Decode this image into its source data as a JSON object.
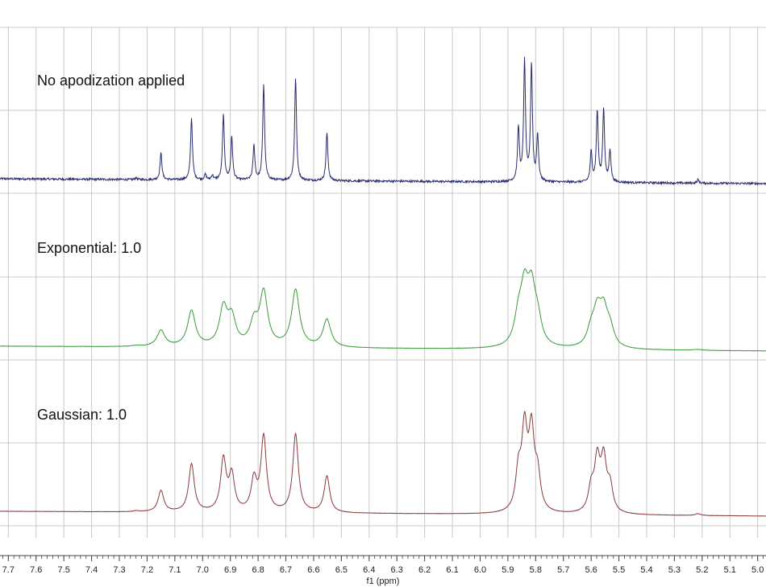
{
  "chart_data": {
    "type": "line",
    "xlabel": "f1 (ppm)",
    "xlim": [
      7.73,
      4.97
    ],
    "x_reversed": true,
    "x_ticks": [
      7.7,
      7.6,
      7.5,
      7.4,
      7.3,
      7.2,
      7.1,
      7.0,
      6.9,
      6.8,
      6.7,
      6.6,
      6.5,
      6.4,
      6.3,
      6.2,
      6.1,
      6.0,
      5.9,
      5.8,
      5.7,
      5.6,
      5.5,
      5.4,
      5.3,
      5.2,
      5.1,
      5.0
    ],
    "x_tick_labels": [
      "7.7",
      "7.6",
      "7.5",
      "7.4",
      "7.3",
      "7.2",
      "7.1",
      "7.0",
      "6.9",
      "6.8",
      "6.7",
      "6.6",
      "6.5",
      "6.4",
      "6.3",
      "6.2",
      "6.1",
      "6.0",
      "5.9",
      "5.8",
      "5.7",
      "5.6",
      "5.5",
      "5.4",
      "5.3",
      "5.2",
      "5.1",
      "5.0"
    ],
    "grid": true,
    "panels": [
      {
        "label": "No apodization applied",
        "color": "#2a2d6e",
        "linewidth_ppm": 0.004,
        "noise": 0.012,
        "peaks": [
          {
            "ppm": 7.15,
            "height": 0.3
          },
          {
            "ppm": 7.04,
            "height": 0.7
          },
          {
            "ppm": 6.99,
            "height": 0.06
          },
          {
            "ppm": 6.965,
            "height": 0.05
          },
          {
            "ppm": 6.925,
            "height": 0.73
          },
          {
            "ppm": 6.895,
            "height": 0.48
          },
          {
            "ppm": 6.815,
            "height": 0.39
          },
          {
            "ppm": 6.78,
            "height": 1.08
          },
          {
            "ppm": 6.665,
            "height": 1.16
          },
          {
            "ppm": 6.552,
            "height": 0.54
          },
          {
            "ppm": 7.24,
            "height": 0.02
          },
          {
            "ppm": 5.862,
            "height": 0.6
          },
          {
            "ppm": 5.84,
            "height": 1.35
          },
          {
            "ppm": 5.815,
            "height": 1.32
          },
          {
            "ppm": 5.793,
            "height": 0.52
          },
          {
            "ppm": 5.6,
            "height": 0.34
          },
          {
            "ppm": 5.578,
            "height": 0.8
          },
          {
            "ppm": 5.555,
            "height": 0.82
          },
          {
            "ppm": 5.532,
            "height": 0.36
          },
          {
            "ppm": 5.215,
            "height": 0.04
          }
        ]
      },
      {
        "label": "Exponential: 1.0",
        "color": "#3a9a3a",
        "linewidth_ppm": 0.017,
        "noise": 0.002,
        "peaks": [
          {
            "ppm": 7.15,
            "height": 0.18
          },
          {
            "ppm": 7.04,
            "height": 0.4
          },
          {
            "ppm": 6.925,
            "height": 0.42
          },
          {
            "ppm": 6.895,
            "height": 0.3
          },
          {
            "ppm": 6.815,
            "height": 0.25
          },
          {
            "ppm": 6.78,
            "height": 0.6
          },
          {
            "ppm": 6.665,
            "height": 0.64
          },
          {
            "ppm": 6.552,
            "height": 0.31
          },
          {
            "ppm": 7.24,
            "height": 0.01
          },
          {
            "ppm": 5.862,
            "height": 0.3
          },
          {
            "ppm": 5.84,
            "height": 0.58
          },
          {
            "ppm": 5.815,
            "height": 0.57
          },
          {
            "ppm": 5.793,
            "height": 0.26
          },
          {
            "ppm": 5.6,
            "height": 0.18
          },
          {
            "ppm": 5.578,
            "height": 0.36
          },
          {
            "ppm": 5.555,
            "height": 0.37
          },
          {
            "ppm": 5.532,
            "height": 0.19
          },
          {
            "ppm": 5.215,
            "height": 0.01
          }
        ]
      },
      {
        "label": "Gaussian: 1.0",
        "color": "#8a3a3a",
        "linewidth_ppm": 0.012,
        "noise": 0.002,
        "peaks": [
          {
            "ppm": 7.15,
            "height": 0.24
          },
          {
            "ppm": 7.04,
            "height": 0.54
          },
          {
            "ppm": 6.925,
            "height": 0.58
          },
          {
            "ppm": 6.895,
            "height": 0.4
          },
          {
            "ppm": 6.815,
            "height": 0.35
          },
          {
            "ppm": 6.78,
            "height": 0.84
          },
          {
            "ppm": 6.665,
            "height": 0.88
          },
          {
            "ppm": 6.552,
            "height": 0.41
          },
          {
            "ppm": 7.24,
            "height": 0.01
          },
          {
            "ppm": 5.862,
            "height": 0.42
          },
          {
            "ppm": 5.84,
            "height": 0.88
          },
          {
            "ppm": 5.815,
            "height": 0.86
          },
          {
            "ppm": 5.793,
            "height": 0.38
          },
          {
            "ppm": 5.6,
            "height": 0.26
          },
          {
            "ppm": 5.578,
            "height": 0.56
          },
          {
            "ppm": 5.555,
            "height": 0.57
          },
          {
            "ppm": 5.532,
            "height": 0.28
          },
          {
            "ppm": 5.215,
            "height": 0.02
          }
        ]
      }
    ]
  }
}
